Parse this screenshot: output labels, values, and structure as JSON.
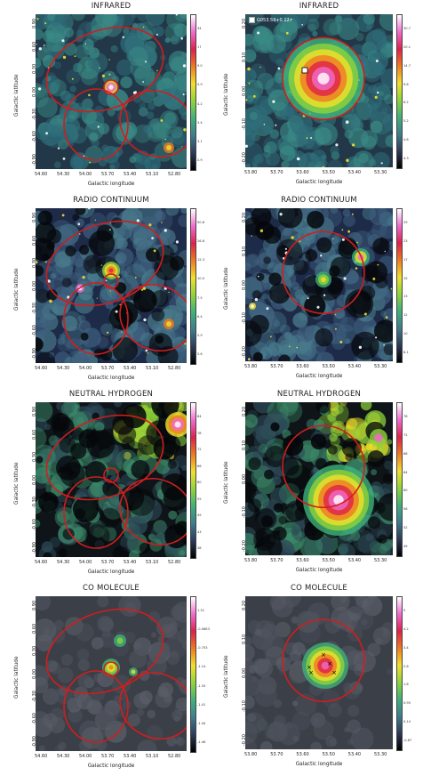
{
  "colors": {
    "ellipse": "#d21d1d",
    "colormap": [
      "#000000",
      "#2e3a58",
      "#3f7c8c",
      "#3fb07a",
      "#8fd43a",
      "#f2e02a",
      "#f07a20",
      "#e0204a",
      "#f06ad0",
      "#ffffff"
    ],
    "cross": "#000000"
  },
  "axis": {
    "xlabel": "Galactic longitude",
    "ylabel": "Galactic latitude",
    "left_xticks": [
      "54.60",
      "54.30",
      "54.00",
      "53.70",
      "53.40",
      "53.10",
      "52.80"
    ],
    "left_yticks": [
      "0.90",
      "0.60",
      "0.30",
      "0.00",
      "-0.30",
      "-0.60",
      "-0.90"
    ],
    "right_xticks": [
      "53.80",
      "53.70",
      "53.60",
      "53.50",
      "53.40",
      "53.30"
    ],
    "right_yticks": [
      "0.20",
      "0.10",
      "0.00",
      "-0.10",
      "-0.20"
    ]
  },
  "panels": [
    {
      "title": "INFRARED",
      "cbar": [
        "34",
        "17",
        "9.0",
        "5.9",
        "4.2",
        "3.4",
        "3.1",
        "2.9"
      ]
    },
    {
      "title": "INFRARED",
      "legend": "G053.59+0.12",
      "cbar": [
        "30.7",
        "20.1",
        "14.7",
        "9.6",
        "6.2",
        "5.2",
        "4.6",
        "4.3"
      ]
    },
    {
      "title": "RADIO CONTINUUM",
      "cbar": [
        "50.8",
        "26.8",
        "15.3",
        "10.0",
        "7.5",
        "6.4",
        "5.9",
        "5.6"
      ]
    },
    {
      "title": "RADIO CONTINUUM",
      "cbar": [
        "29",
        "23",
        "17",
        "15",
        "13",
        "12",
        "10",
        "8.1"
      ]
    },
    {
      "title": "NEUTRAL HYDROGEN",
      "cbar": [
        "84",
        "78",
        "72",
        "66",
        "60",
        "55",
        "49",
        "43",
        "38"
      ]
    },
    {
      "title": "NEUTRAL HYDROGEN",
      "cbar": [
        "78",
        "72",
        "68",
        "64",
        "60",
        "56",
        "52",
        "49"
      ]
    },
    {
      "title": "CO MOLECULE",
      "cbar": [
        "1.31",
        "-0.0883",
        "-0.753",
        "-1.14",
        "-1.33",
        "-1.41",
        "-1.44",
        "-1.46"
      ]
    },
    {
      "title": "CO MOLECULE",
      "cbar": [
        "5",
        "4.2",
        "3.4",
        "2.6",
        "1.8",
        "0.95",
        "0.14",
        "-0.67"
      ]
    }
  ]
}
